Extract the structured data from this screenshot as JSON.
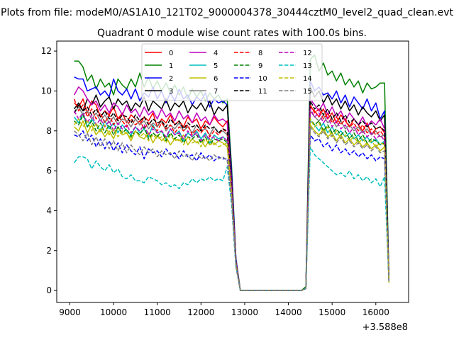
{
  "figure": {
    "suptitle": "Plots from file: modeM0/AS1A10_121T02_9000004378_30444cztM0_level2_quad_clean.evt"
  },
  "chart_data": {
    "type": "line",
    "title": "Quadrant 0 module wise count rates with 100.0s bins.",
    "xlabel": "",
    "ylabel": "",
    "x_offset_label": "+3.588e8",
    "xlim": [
      8700,
      16750
    ],
    "ylim": [
      -0.6,
      12.5
    ],
    "xticks": [
      9000,
      10000,
      11000,
      12000,
      13000,
      14000,
      15000,
      16000
    ],
    "yticks": [
      0,
      2,
      4,
      6,
      8,
      10,
      12
    ],
    "grid": false,
    "legend": {
      "placement": "top-center",
      "ncol": 4
    },
    "x_first": 9100,
    "x_step": 100,
    "series": [
      {
        "name": "0",
        "color": "#ff0000",
        "dash": "solid",
        "values": [
          9.4,
          9.2,
          9.6,
          8.9,
          9.5,
          9.3,
          8.7,
          9.0,
          8.8,
          9.2,
          8.6,
          8.9,
          8.4,
          8.8,
          8.6,
          8.3,
          8.7,
          8.5,
          8.9,
          8.2,
          8.6,
          8.4,
          8.8,
          8.3,
          8.5,
          8.2,
          8.7,
          8.4,
          8.6,
          8.1,
          8.5,
          8.3,
          8.7,
          8.4,
          8.2,
          8.5,
          5.5,
          1.5,
          0,
          0,
          0,
          0,
          0,
          0,
          0,
          0,
          0,
          0,
          0,
          0,
          0,
          0,
          0,
          0.1,
          9.2,
          9.0,
          8.7,
          9.1,
          8.6,
          8.9,
          8.4,
          8.8,
          8.5,
          8.2,
          8.6,
          8.3,
          8.0,
          8.4,
          7.8,
          8.1,
          8.2,
          7.9,
          0.5
        ]
      },
      {
        "name": "1",
        "color": "#008000",
        "dash": "solid",
        "values": [
          11.5,
          11.5,
          11.2,
          10.5,
          10.8,
          10.1,
          10.6,
          10.2,
          10.4,
          9.8,
          10.6,
          10.3,
          10.1,
          10.6,
          10.2,
          10.9,
          10.2,
          10.7,
          10.1,
          10.5,
          10.0,
          10.4,
          9.9,
          10.3,
          9.8,
          10.2,
          9.6,
          10.1,
          9.7,
          10.0,
          9.5,
          9.9,
          9.6,
          9.8,
          9.4,
          9.6,
          6.2,
          1.6,
          0,
          0,
          0,
          0,
          0,
          0,
          0,
          0,
          0,
          0,
          0,
          0,
          0,
          0,
          0,
          0.2,
          11.6,
          11.8,
          11.0,
          11.4,
          10.8,
          11.0,
          10.5,
          10.9,
          10.3,
          10.6,
          10.2,
          10.5,
          9.9,
          10.4,
          10.1,
          10.2,
          10.4,
          10.4,
          0.7
        ]
      },
      {
        "name": "2",
        "color": "#0000ff",
        "dash": "solid",
        "values": [
          10.7,
          10.6,
          10.6,
          10.0,
          10.1,
          10.2,
          9.8,
          10.0,
          9.7,
          10.6,
          10.0,
          9.8,
          10.1,
          9.6,
          10.1,
          9.5,
          9.9,
          9.7,
          10.2,
          9.6,
          10.0,
          9.4,
          9.9,
          9.5,
          10.1,
          9.6,
          9.8,
          9.3,
          9.7,
          9.5,
          9.9,
          9.2,
          9.6,
          9.4,
          9.5,
          9.3,
          5.9,
          1.6,
          0,
          0,
          0,
          0,
          0,
          0,
          0,
          0,
          0,
          0,
          0,
          0,
          0,
          0,
          0,
          0.1,
          10.5,
          10.0,
          10.2,
          9.8,
          9.9,
          9.6,
          10.0,
          9.4,
          9.8,
          9.2,
          9.7,
          9.4,
          9.1,
          9.6,
          9.0,
          9.4,
          8.6,
          9.0,
          0.6
        ]
      },
      {
        "name": "3",
        "color": "#000000",
        "dash": "solid",
        "values": [
          9.1,
          9.4,
          9.0,
          9.6,
          9.3,
          9.8,
          9.2,
          9.5,
          9.7,
          9.1,
          9.6,
          9.3,
          9.5,
          9.0,
          9.4,
          9.2,
          9.7,
          9.0,
          9.5,
          9.3,
          9.1,
          9.6,
          9.0,
          9.4,
          9.2,
          9.5,
          8.9,
          9.3,
          9.1,
          9.4,
          9.0,
          9.5,
          8.8,
          9.2,
          9.0,
          9.3,
          5.6,
          1.5,
          0,
          0,
          0,
          0,
          0,
          0,
          0,
          0,
          0,
          0,
          0,
          0,
          0,
          0,
          0,
          0.1,
          10.2,
          9.7,
          10.0,
          9.4,
          9.8,
          9.3,
          9.6,
          9.1,
          9.5,
          9.0,
          9.3,
          8.8,
          9.2,
          8.9,
          8.7,
          9.0,
          8.5,
          8.8,
          0.5
        ]
      },
      {
        "name": "4",
        "color": "#bf00bf",
        "dash": "solid",
        "values": [
          9.8,
          10.2,
          10.0,
          9.6,
          9.3,
          9.5,
          9.0,
          9.3,
          8.9,
          9.4,
          9.2,
          8.8,
          9.3,
          8.9,
          9.1,
          8.7,
          9.2,
          8.8,
          9.0,
          8.6,
          9.1,
          8.7,
          8.9,
          8.5,
          9.0,
          8.6,
          8.8,
          8.4,
          8.9,
          8.5,
          8.7,
          8.3,
          8.8,
          8.5,
          8.6,
          8.4,
          5.4,
          1.5,
          0,
          0,
          0,
          0,
          0,
          0,
          0,
          0,
          0,
          0,
          0,
          0,
          0,
          0,
          0,
          0.1,
          9.6,
          9.3,
          9.0,
          9.4,
          8.8,
          9.2,
          8.7,
          9.0,
          8.5,
          8.9,
          8.6,
          8.3,
          8.7,
          8.2,
          8.5,
          8.3,
          8.6,
          8.1,
          0.5
        ]
      },
      {
        "name": "5",
        "color": "#00bfbf",
        "dash": "solid",
        "values": [
          8.7,
          8.4,
          8.9,
          8.2,
          8.6,
          8.3,
          8.0,
          8.5,
          8.1,
          8.4,
          7.9,
          8.3,
          8.0,
          7.8,
          8.2,
          7.9,
          8.1,
          7.7,
          8.3,
          7.9,
          8.0,
          7.6,
          8.1,
          7.8,
          8.0,
          7.5,
          7.9,
          7.7,
          8.0,
          7.6,
          7.9,
          7.4,
          7.8,
          7.6,
          7.7,
          7.5,
          5.0,
          1.4,
          0,
          0,
          0,
          0,
          0,
          0,
          0,
          0,
          0,
          0,
          0,
          0,
          0,
          0,
          0,
          0.1,
          8.5,
          8.3,
          8.0,
          8.4,
          7.9,
          8.2,
          7.8,
          8.0,
          7.7,
          7.9,
          7.6,
          7.8,
          7.5,
          7.7,
          7.4,
          7.6,
          7.3,
          7.5,
          0.4
        ]
      },
      {
        "name": "6",
        "color": "#bfbf00",
        "dash": "solid",
        "values": [
          8.2,
          8.0,
          8.5,
          7.9,
          8.3,
          7.8,
          8.1,
          7.7,
          8.0,
          7.6,
          8.2,
          7.8,
          7.9,
          7.5,
          8.0,
          7.7,
          7.6,
          7.9,
          7.4,
          7.8,
          7.5,
          7.7,
          7.3,
          7.6,
          7.5,
          7.8,
          7.3,
          7.6,
          7.4,
          7.5,
          7.2,
          7.6,
          7.3,
          7.5,
          7.4,
          7.2,
          4.8,
          1.3,
          0,
          0,
          0,
          0,
          0,
          0,
          0,
          0,
          0,
          0,
          0,
          0,
          0,
          0,
          0,
          0.1,
          8.3,
          8.0,
          7.8,
          8.1,
          7.7,
          7.9,
          7.5,
          7.8,
          7.4,
          7.6,
          7.3,
          7.5,
          7.2,
          7.4,
          7.1,
          7.3,
          7.0,
          7.2,
          0.4
        ]
      },
      {
        "name": "7",
        "color": "#7f7f7f",
        "dash": "solid",
        "values": [
          8.9,
          9.2,
          8.8,
          9.0,
          8.6,
          8.9,
          8.5,
          8.8,
          8.4,
          8.7,
          8.3,
          8.6,
          8.5,
          8.2,
          8.6,
          8.3,
          8.5,
          8.1,
          8.4,
          8.2,
          8.5,
          8.0,
          8.3,
          8.1,
          8.4,
          8.0,
          8.2,
          7.9,
          8.3,
          8.0,
          8.1,
          7.8,
          8.2,
          7.9,
          8.0,
          7.8,
          5.1,
          1.4,
          0,
          0,
          0,
          0,
          0,
          0,
          0,
          0,
          0,
          0,
          0,
          0,
          0,
          0,
          0,
          0.1,
          9.0,
          8.7,
          8.5,
          8.8,
          8.4,
          8.6,
          8.2,
          8.5,
          8.1,
          8.3,
          8.0,
          8.2,
          7.9,
          8.1,
          7.8,
          8.0,
          7.7,
          7.8,
          0.5
        ]
      },
      {
        "name": "8",
        "color": "#ff0000",
        "dash": "dashed",
        "values": [
          9.6,
          9.0,
          9.3,
          8.7,
          9.1,
          8.6,
          8.9,
          8.4,
          8.8,
          8.3,
          8.7,
          8.5,
          8.2,
          8.6,
          8.3,
          8.5,
          8.1,
          8.4,
          8.2,
          8.0,
          8.4,
          8.1,
          8.3,
          7.9,
          8.2,
          8.0,
          8.3,
          7.8,
          8.1,
          7.9,
          8.2,
          7.7,
          8.0,
          7.8,
          8.1,
          7.9,
          5.2,
          1.4,
          0,
          0,
          0,
          0,
          0,
          0,
          0,
          0,
          0,
          0,
          0,
          0,
          0,
          0,
          0,
          0.1,
          9.3,
          8.9,
          9.1,
          8.6,
          8.9,
          8.4,
          8.7,
          8.3,
          8.6,
          8.2,
          8.4,
          8.0,
          8.3,
          7.9,
          8.1,
          7.8,
          8.0,
          7.7,
          0.5
        ]
      },
      {
        "name": "9",
        "color": "#008000",
        "dash": "dashed",
        "values": [
          8.5,
          8.3,
          8.8,
          8.2,
          8.5,
          8.0,
          8.4,
          7.9,
          8.3,
          7.8,
          8.2,
          7.9,
          8.1,
          7.7,
          8.0,
          7.8,
          8.2,
          7.6,
          7.9,
          7.7,
          8.0,
          7.5,
          7.9,
          7.6,
          7.8,
          7.4,
          7.7,
          7.6,
          7.8,
          7.4,
          7.7,
          7.3,
          7.6,
          7.5,
          7.6,
          7.4,
          4.9,
          1.3,
          0,
          0,
          0,
          0,
          0,
          0,
          0,
          0,
          0,
          0,
          0,
          0,
          0,
          0,
          0,
          0.1,
          8.6,
          8.3,
          8.5,
          8.0,
          8.3,
          7.9,
          8.1,
          7.8,
          8.0,
          7.6,
          7.9,
          7.5,
          7.8,
          7.4,
          7.6,
          7.5,
          7.3,
          7.4,
          0.4
        ]
      },
      {
        "name": "10",
        "color": "#0000ff",
        "dash": "dashed",
        "values": [
          7.8,
          7.7,
          8.0,
          7.5,
          7.8,
          7.2,
          7.6,
          7.1,
          7.5,
          7.0,
          7.4,
          6.9,
          7.3,
          7.0,
          6.8,
          7.2,
          6.6,
          7.1,
          6.9,
          7.0,
          6.7,
          7.1,
          6.8,
          6.9,
          6.6,
          7.0,
          6.7,
          6.8,
          6.5,
          6.9,
          6.6,
          6.8,
          6.5,
          6.7,
          6.6,
          6.6,
          4.4,
          1.2,
          0,
          0,
          0,
          0,
          0,
          0,
          0,
          0,
          0,
          0,
          0,
          0,
          0,
          0,
          0,
          0.1,
          7.8,
          7.5,
          7.6,
          7.2,
          7.4,
          7.0,
          7.3,
          6.9,
          7.1,
          6.8,
          7.0,
          6.7,
          6.9,
          6.6,
          6.8,
          6.5,
          6.7,
          6.6,
          0.4
        ]
      },
      {
        "name": "11",
        "color": "#000000",
        "dash": "dashed",
        "values": [
          8.9,
          9.3,
          9.0,
          9.2,
          8.8,
          9.1,
          8.7,
          9.0,
          8.6,
          8.9,
          8.5,
          8.8,
          8.7,
          8.4,
          8.8,
          8.5,
          8.7,
          8.3,
          8.6,
          8.4,
          8.5,
          8.2,
          8.6,
          8.3,
          8.5,
          8.1,
          8.4,
          8.2,
          8.3,
          8.0,
          8.3,
          8.1,
          8.2,
          7.9,
          8.1,
          8.0,
          5.2,
          1.4,
          0,
          0,
          0,
          0,
          0,
          0,
          0,
          0,
          0,
          0,
          0,
          0,
          0,
          0,
          0,
          0.1,
          9.5,
          9.1,
          9.3,
          8.8,
          9.1,
          8.6,
          8.9,
          8.5,
          8.8,
          8.4,
          8.6,
          8.3,
          8.5,
          8.2,
          8.4,
          8.1,
          8.2,
          8.0,
          0.5
        ]
      },
      {
        "name": "12",
        "color": "#bf00bf",
        "dash": "dashed",
        "values": [
          9.0,
          8.6,
          8.9,
          8.4,
          8.8,
          8.3,
          8.6,
          8.2,
          8.5,
          8.0,
          8.4,
          8.1,
          8.3,
          7.9,
          8.2,
          8.0,
          8.3,
          7.8,
          8.1,
          7.9,
          8.0,
          7.7,
          8.1,
          7.8,
          7.9,
          7.6,
          8.0,
          7.7,
          7.9,
          7.5,
          7.8,
          7.6,
          7.7,
          7.5,
          7.7,
          7.5,
          5.0,
          1.3,
          0,
          0,
          0,
          0,
          0,
          0,
          0,
          0,
          0,
          0,
          0,
          0,
          0,
          0,
          0,
          0.1,
          9.1,
          8.7,
          8.9,
          8.4,
          8.7,
          8.2,
          8.5,
          8.1,
          8.3,
          7.9,
          8.2,
          7.8,
          8.0,
          7.7,
          7.9,
          7.6,
          7.8,
          7.5,
          0.4
        ]
      },
      {
        "name": "13",
        "color": "#00bfbf",
        "dash": "dashed",
        "values": [
          6.4,
          6.7,
          6.7,
          6.6,
          6.1,
          6.5,
          6.2,
          6.0,
          6.3,
          5.9,
          6.1,
          5.7,
          5.6,
          5.8,
          5.5,
          5.5,
          5.4,
          5.7,
          5.6,
          5.5,
          5.3,
          5.4,
          5.2,
          5.3,
          5.1,
          5.4,
          5.3,
          5.6,
          5.4,
          5.6,
          5.5,
          5.7,
          5.5,
          5.6,
          5.5,
          6.2,
          4.3,
          1.2,
          0,
          0,
          0,
          0,
          0,
          0,
          0,
          0,
          0,
          0,
          0,
          0,
          0,
          0,
          0,
          0.1,
          7.2,
          6.8,
          6.6,
          6.4,
          6.2,
          6.0,
          5.8,
          5.9,
          5.7,
          6.0,
          5.6,
          5.8,
          5.5,
          5.7,
          5.4,
          5.6,
          5.2,
          5.7,
          0.4
        ]
      },
      {
        "name": "14",
        "color": "#bfbf00",
        "dash": "dashed",
        "values": [
          8.3,
          8.6,
          8.2,
          8.5,
          8.0,
          8.4,
          7.9,
          8.3,
          7.8,
          8.1,
          7.7,
          8.0,
          7.9,
          7.6,
          8.0,
          7.7,
          7.9,
          7.5,
          7.8,
          7.6,
          7.7,
          7.4,
          7.8,
          7.5,
          7.6,
          7.3,
          7.7,
          7.4,
          7.5,
          7.2,
          7.6,
          7.3,
          7.4,
          7.2,
          7.3,
          7.4,
          4.8,
          1.3,
          0,
          0,
          0,
          0,
          0,
          0,
          0,
          0,
          0,
          0,
          0,
          0,
          0,
          0,
          0,
          0.1,
          8.6,
          8.2,
          8.4,
          7.9,
          8.2,
          7.7,
          8.0,
          7.6,
          7.8,
          7.5,
          7.7,
          7.4,
          7.6,
          7.3,
          7.5,
          7.2,
          7.4,
          7.3,
          0.4
        ]
      },
      {
        "name": "15",
        "color": "#7f7f7f",
        "dash": "dashed",
        "values": [
          8.0,
          7.8,
          7.5,
          7.9,
          7.3,
          7.7,
          7.2,
          7.6,
          7.1,
          7.5,
          7.0,
          7.4,
          6.9,
          7.3,
          7.0,
          6.8,
          7.2,
          6.9,
          7.1,
          6.7,
          7.0,
          6.8,
          6.9,
          6.6,
          7.0,
          6.7,
          6.8,
          6.5,
          6.9,
          6.6,
          6.7,
          6.5,
          6.8,
          6.6,
          6.7,
          6.5,
          4.5,
          1.2,
          0,
          0,
          0,
          0,
          0,
          0,
          0,
          0,
          0,
          0,
          0,
          0,
          0,
          0,
          0,
          0.1,
          8.2,
          7.9,
          7.7,
          8.0,
          7.6,
          7.8,
          7.4,
          7.7,
          7.3,
          7.5,
          7.2,
          7.4,
          7.1,
          7.3,
          7.0,
          7.2,
          6.9,
          7.0,
          0.4
        ]
      }
    ]
  }
}
